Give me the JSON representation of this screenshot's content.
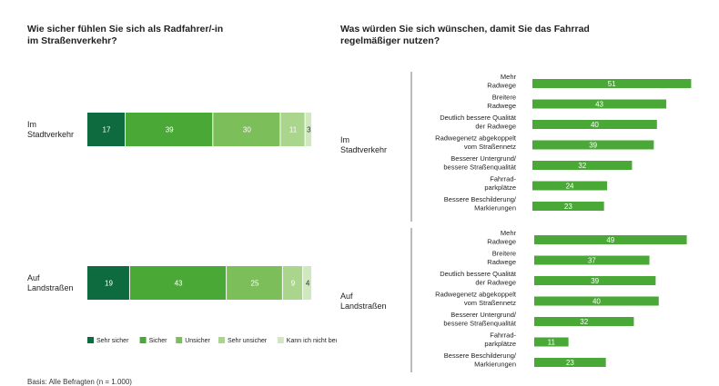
{
  "left_title": "Wie sicher fühlen Sie sich als Radfahrer/-in\nim Straßenverkehr?",
  "right_title": "Was würden Sie sich wünschen, damit Sie das Fahrrad\nregelmäßiger nutzen?",
  "basis": "Basis: Alle Befragten (n = 1.000)",
  "chart_data": [
    {
      "type": "bar",
      "orientation": "horizontal",
      "stacked": true,
      "title": "Wie sicher fühlen Sie sich als Radfahrer/-in im Straßenverkehr?",
      "categories": [
        "Im\nStadtverkehr",
        "Auf\nLandstraßen"
      ],
      "series": [
        {
          "name": "Sehr sicher",
          "values": [
            17,
            19
          ],
          "color": "#0d6b3f"
        },
        {
          "name": "Sicher",
          "values": [
            39,
            43
          ],
          "color": "#4aa936"
        },
        {
          "name": "Unsicher",
          "values": [
            30,
            25
          ],
          "color": "#7cbf5a"
        },
        {
          "name": "Sehr unsicher",
          "values": [
            11,
            9
          ],
          "color": "#a9d58c"
        },
        {
          "name": "Kann ich nicht beurteilen",
          "values": [
            3,
            4
          ],
          "color": "#cfe8bd"
        }
      ],
      "legend": "bottom",
      "grid": false
    },
    {
      "type": "bar",
      "orientation": "horizontal",
      "title": "Was würden Sie sich wünschen, damit Sie das Fahrrad regelmäßiger nutzen?",
      "color": "#4aa936",
      "groups": [
        {
          "name": "Im\nStadtverkehr",
          "categories": [
            "Mehr\nRadwege",
            "Breitere\nRadwege",
            "Deutlich bessere Qualität\nder Radwege",
            "Radwegenetz abgekoppelt\nvom Straßennetz",
            "Besserer Untergrund/\nbessere Straßenqualität",
            "Fahrrad-\nparkplätze",
            "Bessere Beschilderung/\nMarkierungen"
          ],
          "values": [
            51,
            43,
            40,
            39,
            32,
            24,
            23
          ]
        },
        {
          "name": "Auf\nLandstraßen",
          "categories": [
            "Mehr\nRadwege",
            "Breitere\nRadwege",
            "Deutlich bessere Qualität\nder Radwege",
            "Radwegenetz abgekoppelt\nvom Straßennetz",
            "Besserer Untergrund/\nbessere Straßenqualität",
            "Fahrrad-\nparkplätze",
            "Bessere Beschilderung/\nMarkierungen"
          ],
          "values": [
            49,
            37,
            39,
            40,
            32,
            11,
            23
          ]
        }
      ],
      "grid": false
    }
  ]
}
